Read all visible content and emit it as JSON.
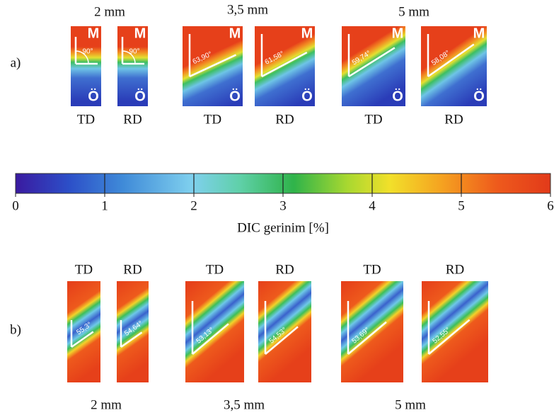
{
  "panel_a": {
    "label": "a)",
    "groups": [
      {
        "thickness": "2 mm",
        "specimens": [
          {
            "direction": "TD",
            "angle": "90°",
            "top": "M",
            "bottom": "Ö"
          },
          {
            "direction": "RD",
            "angle": "90°",
            "top": "M",
            "bottom": "Ö"
          }
        ]
      },
      {
        "thickness": "3,5 mm",
        "specimens": [
          {
            "direction": "TD",
            "angle": "63,90°",
            "top": "M",
            "bottom": "Ö"
          },
          {
            "direction": "RD",
            "angle": "61,58°",
            "top": "M",
            "bottom": "Ö"
          }
        ]
      },
      {
        "thickness": "5 mm",
        "specimens": [
          {
            "direction": "TD",
            "angle": "59,74°",
            "top": "M",
            "bottom": "Ö"
          },
          {
            "direction": "RD",
            "angle": "58,08°",
            "top": "M",
            "bottom": "Ö"
          }
        ]
      }
    ]
  },
  "colorbar": {
    "range": [
      0,
      6
    ],
    "ticks": [
      0,
      1,
      2,
      3,
      4,
      5,
      6
    ],
    "label": "DIC gerinim [%]"
  },
  "panel_b": {
    "label": "b)",
    "groups": [
      {
        "thickness": "2 mm",
        "specimens": [
          {
            "direction": "TD",
            "angle": "55,3°"
          },
          {
            "direction": "RD",
            "angle": "54,64°"
          }
        ]
      },
      {
        "thickness": "3,5 mm",
        "specimens": [
          {
            "direction": "TD",
            "angle": "53,13°"
          },
          {
            "direction": "RD",
            "angle": "54,53°"
          }
        ]
      },
      {
        "thickness": "5 mm",
        "specimens": [
          {
            "direction": "TD",
            "angle": "53,69°"
          },
          {
            "direction": "RD",
            "angle": "52,55°"
          }
        ]
      }
    ]
  }
}
